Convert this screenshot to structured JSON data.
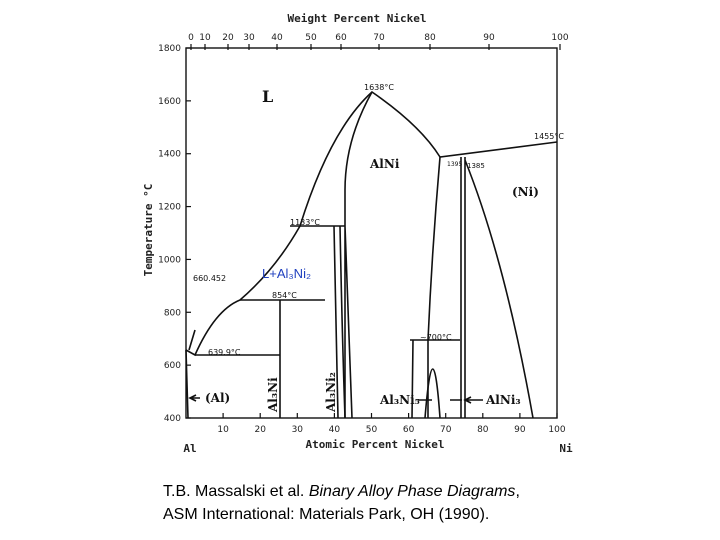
{
  "figure": {
    "top_axis": {
      "label": "Weight Percent Nickel",
      "ticks": [
        "0",
        "10",
        "20",
        "30",
        "40",
        "50",
        "60",
        "70",
        "80",
        "90",
        "100"
      ]
    },
    "y_axis": {
      "label": "Temperature °C",
      "ticks": [
        "400",
        "600",
        "800",
        "1000",
        "1200",
        "1400",
        "1600",
        "1800"
      ]
    },
    "x_axis": {
      "label": "Atomic Percent Nickel",
      "ticks": [
        "10",
        "20",
        "30",
        "40",
        "50",
        "60",
        "70",
        "80",
        "90",
        "100"
      ]
    },
    "end_labels": {
      "left": "Al",
      "right": "Ni"
    },
    "phases": {
      "liquid": "L",
      "alni": "AlNi",
      "ni": "(Ni)",
      "al": "(Al)",
      "al3ni": "Al₃Ni",
      "al3ni2": "Al₃Ni₂",
      "al3ni5": "Al₃Ni₅",
      "alni3": "AlNi₃",
      "two_phase": "L+Al₃Ni₂"
    },
    "temperatures": {
      "peak": "1638°C",
      "ni_melt": "1455°C",
      "t1395": "1395",
      "t1385": "1385",
      "t1133": "1133°C",
      "t854": "854°C",
      "al_melt": "660.452",
      "eutectic": "639.9°C",
      "t700": "~700°C"
    },
    "caption": {
      "line1_plain": "T.B. Massalski et al. ",
      "line1_italic": "Binary Alloy Phase Diagrams",
      "line1_end": ",",
      "line2": "ASM International: Materials Park, OH (1990)."
    }
  }
}
